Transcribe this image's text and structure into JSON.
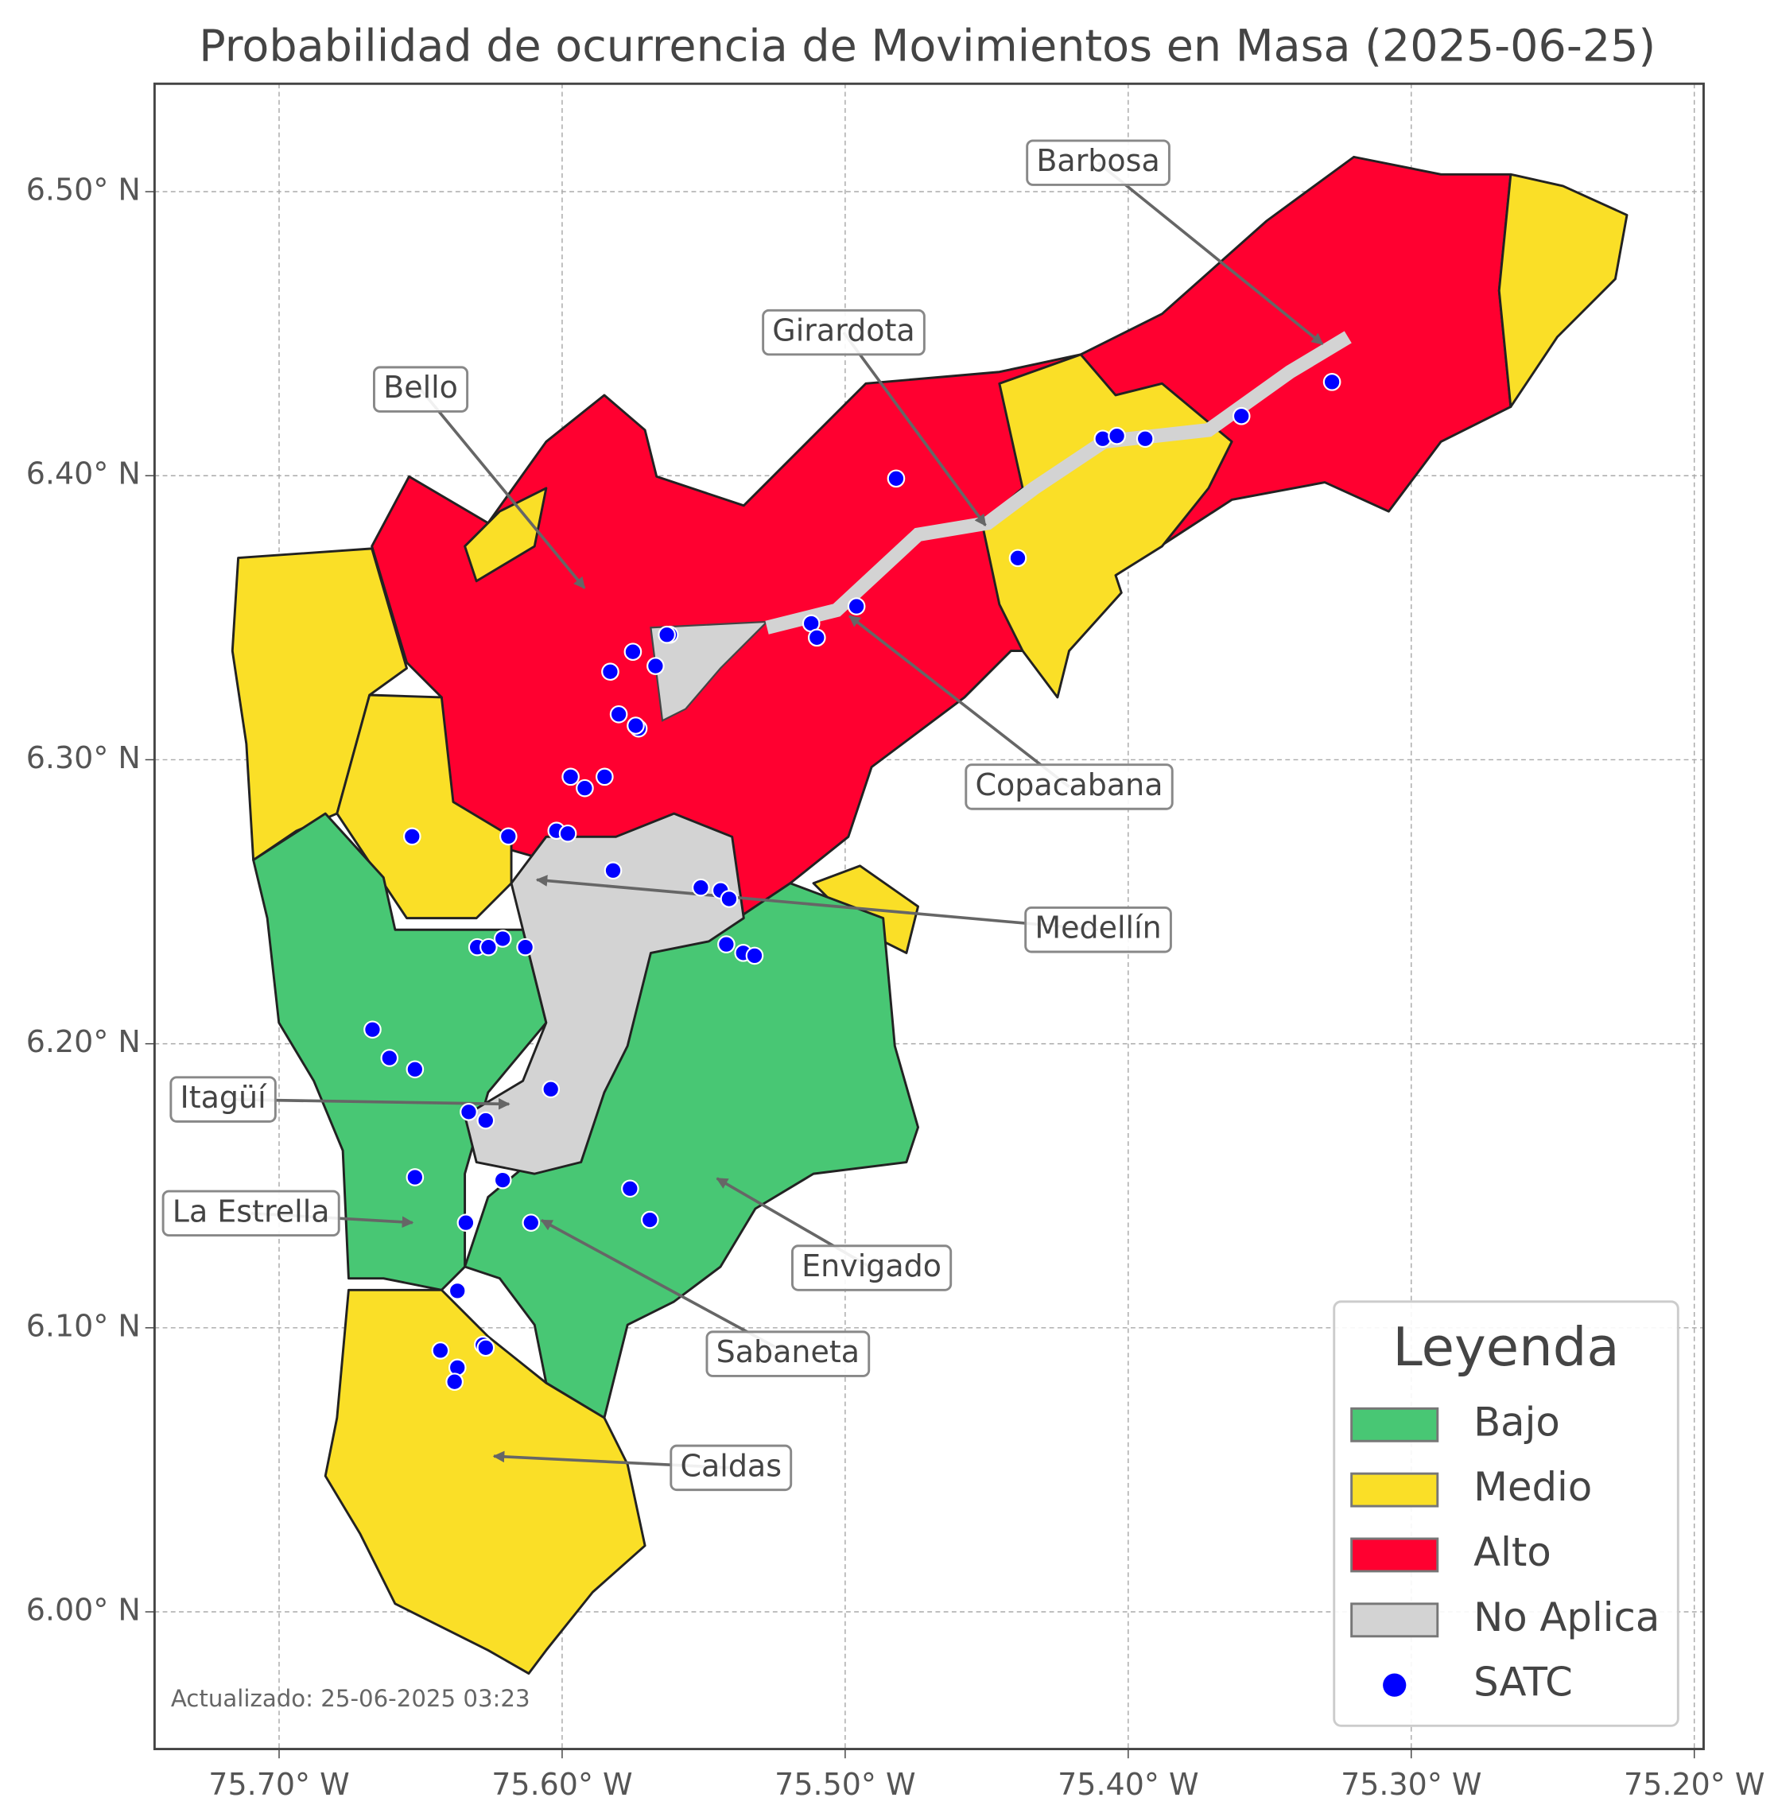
{
  "chart_data": {
    "type": "map",
    "title": "Probabilidad de ocurrencia de Movimientos en Masa (2025-06-25)",
    "xlim": [
      -75.744,
      -75.1967
    ],
    "ylim": [
      5.9517,
      6.538
    ],
    "xticks": [
      {
        "value": -75.7,
        "label": "75.70° W"
      },
      {
        "value": -75.6,
        "label": "75.60° W"
      },
      {
        "value": -75.5,
        "label": "75.50° W"
      },
      {
        "value": -75.4,
        "label": "75.40° W"
      },
      {
        "value": -75.3,
        "label": "75.30° W"
      },
      {
        "value": -75.2,
        "label": "75.20° W"
      }
    ],
    "yticks": [
      {
        "value": 6.0,
        "label": "6.00° N"
      },
      {
        "value": 6.1,
        "label": "6.10° N"
      },
      {
        "value": 6.2,
        "label": "6.20° N"
      },
      {
        "value": 6.3,
        "label": "6.30° N"
      },
      {
        "value": 6.4,
        "label": "6.40° N"
      },
      {
        "value": 6.5,
        "label": "6.50° N"
      }
    ],
    "grid": true,
    "legend": {
      "title": "Leyenda",
      "position": "lower right",
      "items": [
        {
          "name": "Bajo",
          "color": "#48c774"
        },
        {
          "name": "Medio",
          "color": "#fadf27"
        },
        {
          "name": "Alto",
          "color": "#ff0030"
        },
        {
          "name": "No Aplica",
          "color": "#d3d3d3"
        }
      ]
    },
    "series": [
      {
        "name": "SATC",
        "color": "#0000ff",
        "x": [
          -75.328,
          -75.36,
          -75.409,
          -75.404,
          -75.394,
          -75.482,
          -75.439,
          -75.496,
          -75.512,
          -75.51,
          -75.562,
          -75.563,
          -75.575,
          -75.583,
          -75.567,
          -75.58,
          -75.573,
          -75.574,
          -75.597,
          -75.585,
          -75.592,
          -75.653,
          -75.619,
          -75.602,
          -75.598,
          -75.582,
          -75.551,
          -75.544,
          -75.541,
          -75.542,
          -75.536,
          -75.532,
          -75.621,
          -75.613,
          -75.63,
          -75.626,
          -75.667,
          -75.661,
          -75.652,
          -75.604,
          -75.633,
          -75.627,
          -75.652,
          -75.621,
          -75.576,
          -75.569,
          -75.634,
          -75.611,
          -75.637,
          -75.643,
          -75.628,
          -75.627,
          -75.637,
          -75.638
        ],
        "y": [
          6.433,
          6.421,
          6.413,
          6.414,
          6.413,
          6.399,
          6.371,
          6.354,
          6.348,
          6.343,
          6.344,
          6.344,
          6.338,
          6.331,
          6.333,
          6.316,
          6.311,
          6.312,
          6.294,
          6.294,
          6.29,
          6.273,
          6.273,
          6.275,
          6.274,
          6.261,
          6.255,
          6.254,
          6.251,
          6.235,
          6.232,
          6.231,
          6.237,
          6.234,
          6.234,
          6.234,
          6.205,
          6.195,
          6.191,
          6.184,
          6.176,
          6.173,
          6.153,
          6.152,
          6.149,
          6.138,
          6.137,
          6.137,
          6.113,
          6.092,
          6.094,
          6.093,
          6.086,
          6.081
        ]
      }
    ],
    "annotations": [
      "Barbosa",
      "Girardota",
      "Bello",
      "Copacabana",
      "Medellín",
      "Itagüí",
      "La Estrella",
      "Envigado",
      "Sabaneta",
      "Caldas"
    ],
    "footnote": "Actualizado: 25-06-2025 03:23"
  }
}
